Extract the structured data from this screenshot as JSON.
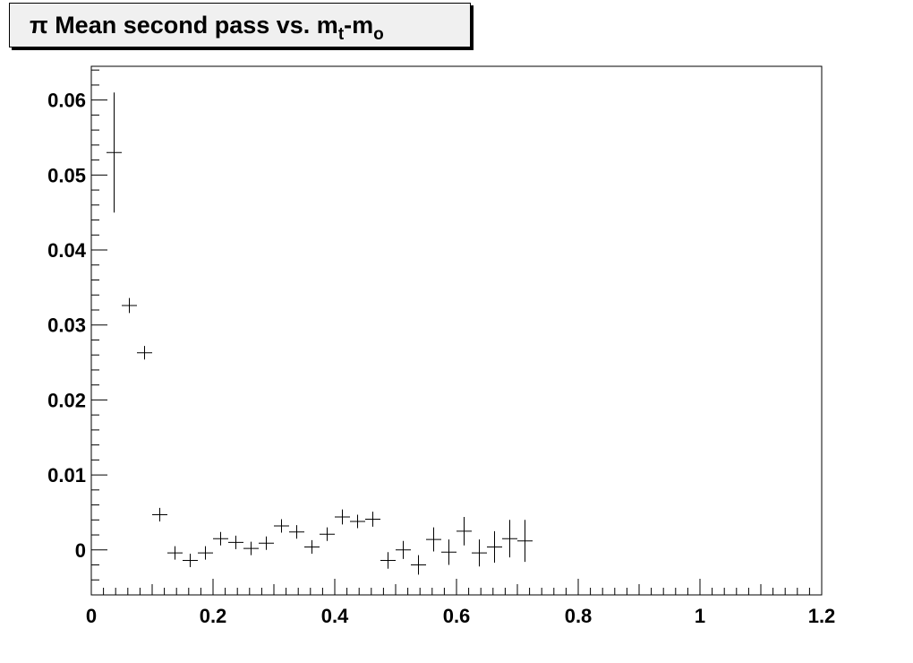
{
  "chart_data": {
    "type": "scatter",
    "title": {
      "symbol": "π",
      "text": "Mean second pass vs. m",
      "sub1": "t",
      "mid": "-m",
      "sub2": "o"
    },
    "xlabel": "",
    "ylabel": "",
    "xlim": [
      0,
      1.2
    ],
    "ylim": [
      -0.006,
      0.0645
    ],
    "x_ticks": [
      "0",
      "0.2",
      "0.4",
      "0.6",
      "0.8",
      "1",
      "1.2"
    ],
    "y_ticks": [
      "0",
      "0.01",
      "0.02",
      "0.03",
      "0.04",
      "0.05",
      "0.06"
    ],
    "grid": false,
    "marker": "cross-with-error-bars",
    "bin_half_width": 0.0125,
    "points": [
      {
        "x": 0.0375,
        "y": 0.053,
        "err": 0.008
      },
      {
        "x": 0.0625,
        "y": 0.0326,
        "err": 0.001
      },
      {
        "x": 0.0875,
        "y": 0.0263,
        "err": 0.0008
      },
      {
        "x": 0.1125,
        "y": 0.0047,
        "err": 0.0004
      },
      {
        "x": 0.1375,
        "y": -0.0004,
        "err": 0.0007
      },
      {
        "x": 0.1625,
        "y": -0.0014,
        "err": 0.0007
      },
      {
        "x": 0.1875,
        "y": -0.0004,
        "err": 0.0007
      },
      {
        "x": 0.2125,
        "y": 0.0015,
        "err": 0.0007
      },
      {
        "x": 0.2375,
        "y": 0.001,
        "err": 0.0007
      },
      {
        "x": 0.2625,
        "y": 0.0002,
        "err": 0.0008
      },
      {
        "x": 0.2875,
        "y": 0.0009,
        "err": 0.0008
      },
      {
        "x": 0.3125,
        "y": 0.0032,
        "err": 0.0008
      },
      {
        "x": 0.3375,
        "y": 0.0024,
        "err": 0.0009
      },
      {
        "x": 0.3625,
        "y": 0.0004,
        "err": 0.0009
      },
      {
        "x": 0.3875,
        "y": 0.0021,
        "err": 0.0009
      },
      {
        "x": 0.4125,
        "y": 0.0044,
        "err": 0.001
      },
      {
        "x": 0.4375,
        "y": 0.0038,
        "err": 0.0009
      },
      {
        "x": 0.4625,
        "y": 0.0041,
        "err": 0.001
      },
      {
        "x": 0.4875,
        "y": -0.0014,
        "err": 0.0011
      },
      {
        "x": 0.5125,
        "y": 0.0,
        "err": 0.0012
      },
      {
        "x": 0.5375,
        "y": -0.002,
        "err": 0.0013
      },
      {
        "x": 0.5625,
        "y": 0.0014,
        "err": 0.0016
      },
      {
        "x": 0.5875,
        "y": -0.0003,
        "err": 0.0017
      },
      {
        "x": 0.6125,
        "y": 0.0025,
        "err": 0.0019
      },
      {
        "x": 0.6375,
        "y": -0.0004,
        "err": 0.0018
      },
      {
        "x": 0.6625,
        "y": 0.0004,
        "err": 0.0021
      },
      {
        "x": 0.6875,
        "y": 0.0015,
        "err": 0.0025
      },
      {
        "x": 0.7125,
        "y": 0.0012,
        "err": 0.0028
      }
    ]
  }
}
